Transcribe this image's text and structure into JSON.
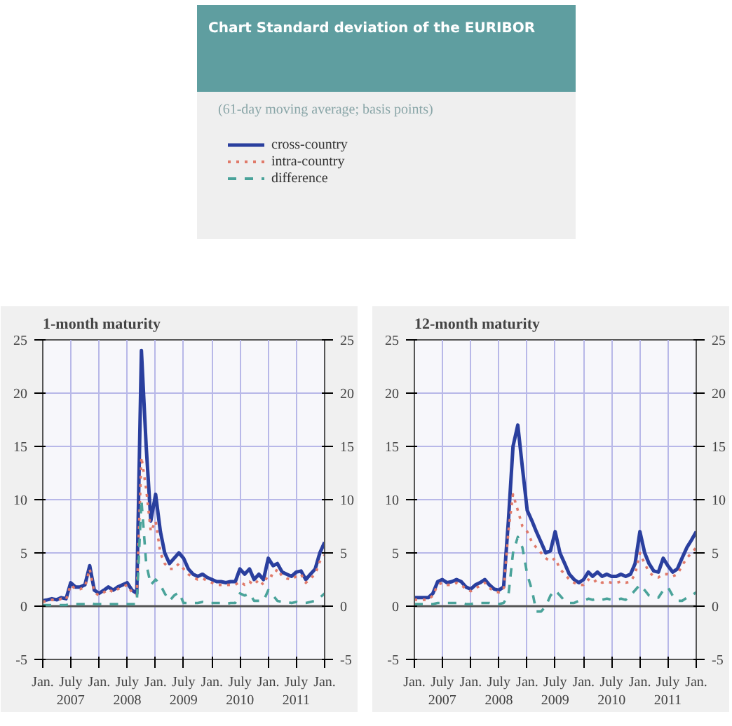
{
  "chart_data": [
    {
      "type": "other",
      "title": "Chart   Standard deviation of the EURIBOR",
      "subtitle": "(61-day moving average; basis points)"
    },
    {
      "type": "line",
      "title": "1-month maturity",
      "legend": "top",
      "grid": true,
      "x": [
        "2007-01",
        "2007-02",
        "2007-03",
        "2007-04",
        "2007-05",
        "2007-06",
        "2007-07",
        "2007-08",
        "2007-09",
        "2007-10",
        "2007-11",
        "2007-12",
        "2008-01",
        "2008-02",
        "2008-03",
        "2008-04",
        "2008-05",
        "2008-06",
        "2008-07",
        "2008-08",
        "2008-09",
        "2008-10",
        "2008-11",
        "2008-12",
        "2009-01",
        "2009-02",
        "2009-03",
        "2009-04",
        "2009-05",
        "2009-06",
        "2009-07",
        "2009-08",
        "2009-09",
        "2009-10",
        "2009-11",
        "2009-12",
        "2010-01",
        "2010-02",
        "2010-03",
        "2010-04",
        "2010-05",
        "2010-06",
        "2010-07",
        "2010-08",
        "2010-09",
        "2010-10",
        "2010-11",
        "2010-12",
        "2011-01",
        "2011-02",
        "2011-03",
        "2011-04",
        "2011-05",
        "2011-06",
        "2011-07",
        "2011-08",
        "2011-09",
        "2011-10",
        "2011-11",
        "2011-12",
        "2012-01"
      ],
      "series": [
        {
          "name": "cross-country",
          "color": "#2a3f9e",
          "line_style": "solid",
          "values": [
            0.5,
            0.6,
            0.7,
            0.6,
            0.8,
            0.7,
            2.2,
            1.8,
            1.8,
            2.0,
            3.8,
            1.5,
            1.2,
            1.5,
            1.8,
            1.5,
            1.8,
            2.0,
            2.2,
            1.5,
            1.2,
            24,
            15,
            8,
            10.5,
            7,
            5,
            4,
            4.5,
            5,
            4.5,
            3.5,
            3,
            2.8,
            3,
            2.7,
            2.5,
            2.3,
            2.3,
            2.2,
            2.3,
            2.3,
            3.5,
            3,
            3.5,
            2.5,
            3,
            2.5,
            4.5,
            3.8,
            4,
            3.2,
            3,
            2.8,
            3.2,
            3.3,
            2.5,
            3,
            3.5,
            5,
            6
          ]
        },
        {
          "name": "intra-country",
          "color": "#e07a6a",
          "line_style": "dotted",
          "values": [
            0.4,
            0.5,
            0.6,
            0.5,
            0.7,
            0.6,
            2.0,
            1.6,
            1.6,
            1.8,
            3.5,
            1.3,
            1.0,
            1.3,
            1.6,
            1.3,
            1.6,
            1.8,
            2.0,
            1.3,
            1.0,
            14,
            11,
            7,
            8,
            5,
            4,
            3.5,
            3.5,
            4,
            3.5,
            3,
            2.7,
            2.5,
            2.6,
            2.4,
            2.2,
            2,
            2,
            2,
            2,
            2,
            2.3,
            2,
            2.3,
            2,
            2.5,
            2,
            3,
            2.8,
            3.5,
            2.8,
            2.6,
            2.5,
            2.8,
            3,
            2.2,
            2.6,
            3,
            4.2,
            4.8
          ]
        },
        {
          "name": "difference",
          "color": "#4aa39a",
          "line_style": "dashed",
          "values": [
            0.1,
            0.1,
            0.1,
            0.1,
            0.1,
            0.1,
            0.2,
            0.2,
            0.2,
            0.2,
            0.3,
            0.2,
            0.2,
            0.2,
            0.2,
            0.2,
            0.2,
            0.2,
            0.2,
            0.2,
            0.2,
            10,
            4,
            2,
            2.5,
            2,
            1.2,
            0.5,
            1,
            1.3,
            0.3,
            0.3,
            0.3,
            0.3,
            0.4,
            0.3,
            0.3,
            0.3,
            0.3,
            0.2,
            0.3,
            0.3,
            1.2,
            1,
            1.2,
            0.5,
            0.5,
            0.5,
            1.5,
            1,
            0.5,
            0.4,
            0.4,
            0.3,
            0.4,
            0.3,
            0.3,
            0.4,
            0.5,
            0.8,
            1.2
          ]
        }
      ],
      "xlim": [
        "2007-01",
        "2012-01"
      ],
      "xticks": [
        {
          "value": "2007-01",
          "label": "Jan."
        },
        {
          "value": "2007-07",
          "label": "July\n2007"
        },
        {
          "value": "2008-01",
          "label": "Jan."
        },
        {
          "value": "2008-07",
          "label": "July\n2008"
        },
        {
          "value": "2009-01",
          "label": "Jan."
        },
        {
          "value": "2009-07",
          "label": "July\n2009"
        },
        {
          "value": "2010-01",
          "label": "Jan."
        },
        {
          "value": "2010-07",
          "label": "July\n2010"
        },
        {
          "value": "2011-01",
          "label": "Jan."
        },
        {
          "value": "2011-07",
          "label": "July\n2011"
        },
        {
          "value": "2012-01",
          "label": "Jan."
        }
      ],
      "ylim": [
        -5,
        25
      ],
      "yticks": [
        -5,
        0,
        5,
        10,
        15,
        20,
        25
      ],
      "y2lim": [
        -5,
        25
      ],
      "y2ticks": [
        -5,
        0,
        5,
        10,
        15,
        20,
        25
      ]
    },
    {
      "type": "line",
      "title": "12-month maturity",
      "legend": false,
      "grid": true,
      "x": [
        "2007-01",
        "2007-02",
        "2007-03",
        "2007-04",
        "2007-05",
        "2007-06",
        "2007-07",
        "2007-08",
        "2007-09",
        "2007-10",
        "2007-11",
        "2007-12",
        "2008-01",
        "2008-02",
        "2008-03",
        "2008-04",
        "2008-05",
        "2008-06",
        "2008-07",
        "2008-08",
        "2008-09",
        "2008-10",
        "2008-11",
        "2008-12",
        "2009-01",
        "2009-02",
        "2009-03",
        "2009-04",
        "2009-05",
        "2009-06",
        "2009-07",
        "2009-08",
        "2009-09",
        "2009-10",
        "2009-11",
        "2009-12",
        "2010-01",
        "2010-02",
        "2010-03",
        "2010-04",
        "2010-05",
        "2010-06",
        "2010-07",
        "2010-08",
        "2010-09",
        "2010-10",
        "2010-11",
        "2010-12",
        "2011-01",
        "2011-02",
        "2011-03",
        "2011-04",
        "2011-05",
        "2011-06",
        "2011-07",
        "2011-08",
        "2011-09",
        "2011-10",
        "2011-11",
        "2011-12",
        "2012-01"
      ],
      "series": [
        {
          "color": "#2a3f9e",
          "line_style": "solid",
          "values": [
            0.8,
            0.8,
            0.8,
            0.8,
            1.2,
            2.3,
            2.5,
            2.2,
            2.3,
            2.5,
            2.3,
            1.8,
            1.6,
            2,
            2.2,
            2.5,
            2,
            1.6,
            1.5,
            1.8,
            8,
            15,
            17,
            13,
            9,
            8,
            7,
            6,
            5,
            5.2,
            7,
            5,
            4,
            3,
            2.5,
            2.2,
            2.5,
            3.2,
            2.8,
            3.2,
            2.8,
            3,
            2.8,
            2.8,
            3,
            2.8,
            3,
            4,
            7,
            5,
            4,
            3.3,
            3.2,
            4.5,
            3.8,
            3.2,
            3.5,
            4.5,
            5.5,
            6.2,
            7
          ]
        },
        {
          "color": "#e07a6a",
          "line_style": "dotted",
          "values": [
            0.6,
            0.6,
            0.6,
            0.6,
            1,
            2,
            2.2,
            2,
            2,
            2.2,
            2,
            1.6,
            1.4,
            1.7,
            1.9,
            2.2,
            1.7,
            1.4,
            1.3,
            1.5,
            7,
            10.5,
            9,
            7.5,
            7,
            6,
            5.5,
            5,
            4.5,
            4.2,
            4.5,
            3.5,
            3,
            2.5,
            2.2,
            2,
            2,
            2.5,
            2.2,
            2.5,
            2.2,
            2.3,
            2.2,
            2.2,
            2.3,
            2.2,
            2.3,
            3,
            5,
            4,
            3.2,
            2.8,
            2.7,
            3,
            3,
            2.8,
            3,
            3.8,
            4.5,
            5,
            5.5
          ]
        },
        {
          "color": "#4aa39a",
          "line_style": "dashed",
          "values": [
            0.2,
            0.2,
            0.2,
            0.2,
            0.2,
            0.3,
            0.3,
            0.3,
            0.3,
            0.3,
            0.3,
            0.2,
            0.2,
            0.3,
            0.3,
            0.3,
            0.3,
            0.2,
            0.2,
            0.3,
            1,
            5,
            6.5,
            5.5,
            3,
            1.5,
            -0.5,
            -0.5,
            0,
            1,
            1.5,
            1,
            0.5,
            0.3,
            0.3,
            0.5,
            0.5,
            0.7,
            0.6,
            0.7,
            0.6,
            0.7,
            0.6,
            0.6,
            0.7,
            0.6,
            1,
            1.5,
            2,
            1.5,
            1,
            0.8,
            0.8,
            1.5,
            1.8,
            1,
            0.5,
            0.5,
            0.8,
            1,
            1.3
          ]
        }
      ],
      "xlim": [
        "2007-01",
        "2012-01"
      ],
      "xticks": [
        {
          "value": "2007-01",
          "label": "Jan."
        },
        {
          "value": "2007-07",
          "label": "July\n2007"
        },
        {
          "value": "2008-01",
          "label": "Jan."
        },
        {
          "value": "2008-07",
          "label": "July\n2008"
        },
        {
          "value": "2009-01",
          "label": "Jan."
        },
        {
          "value": "2009-07",
          "label": "July\n2009"
        },
        {
          "value": "2010-01",
          "label": "Jan."
        },
        {
          "value": "2010-07",
          "label": "July\n2010"
        },
        {
          "value": "2011-01",
          "label": "Jan."
        },
        {
          "value": "2011-07",
          "label": "July\n2011"
        },
        {
          "value": "2012-01",
          "label": "Jan."
        }
      ],
      "ylim": [
        -5,
        25
      ],
      "yticks": [
        -5,
        0,
        5,
        10,
        15,
        20,
        25
      ],
      "y2lim": [
        -5,
        25
      ],
      "y2ticks": [
        -5,
        0,
        5,
        10,
        15,
        20,
        25
      ]
    }
  ]
}
